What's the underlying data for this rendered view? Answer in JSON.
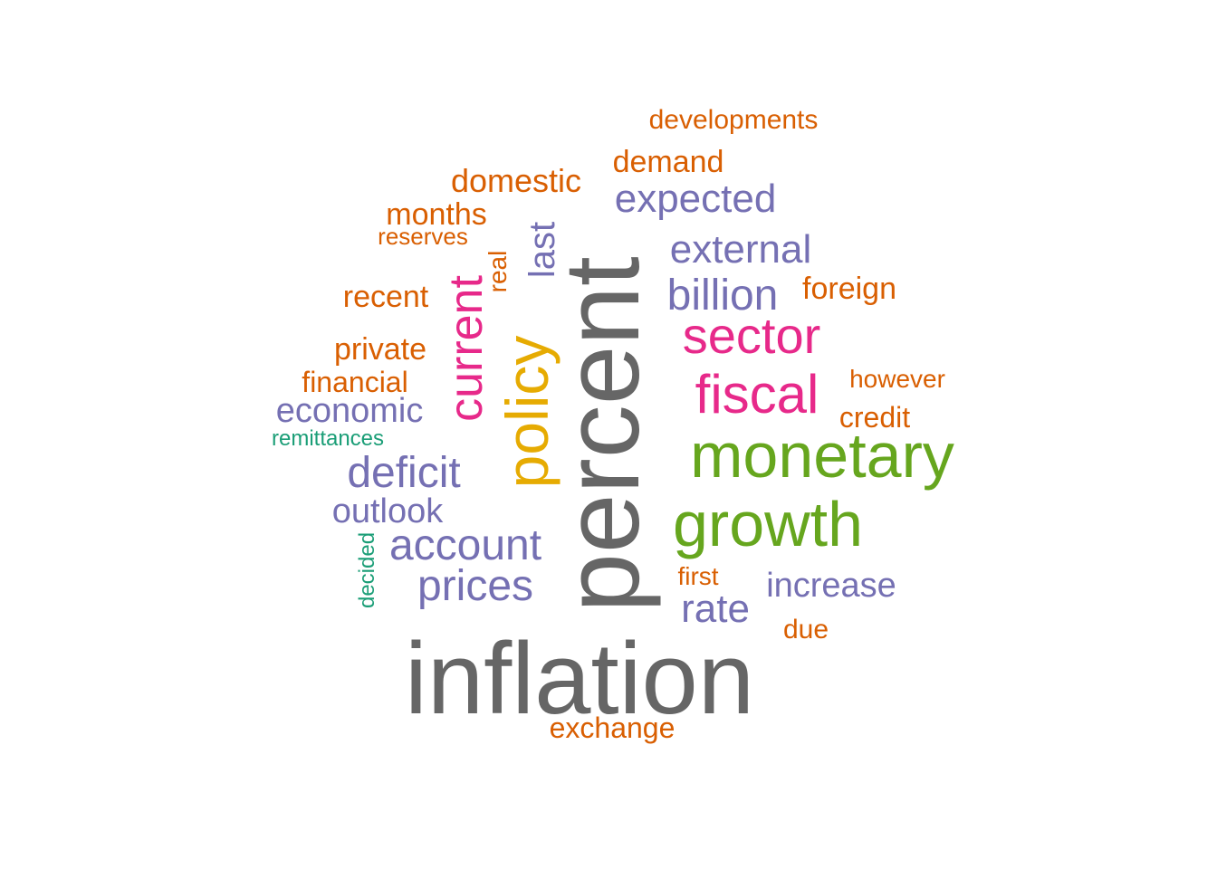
{
  "colors": {
    "gray": "#666666",
    "green": "#66A61E",
    "pink": "#E7298A",
    "purple": "#7570B3",
    "gold": "#E6AB02",
    "orange": "#D95F02",
    "teal": "#1B9E77"
  },
  "words": [
    {
      "id": "inflation",
      "text": "inflation",
      "color": "gray"
    },
    {
      "id": "percent",
      "text": "percent",
      "color": "gray"
    },
    {
      "id": "monetary",
      "text": "monetary",
      "color": "green"
    },
    {
      "id": "growth",
      "text": "growth",
      "color": "green"
    },
    {
      "id": "policy",
      "text": "policy",
      "color": "gold"
    },
    {
      "id": "fiscal",
      "text": "fiscal",
      "color": "pink"
    },
    {
      "id": "sector",
      "text": "sector",
      "color": "pink"
    },
    {
      "id": "current",
      "text": "current",
      "color": "pink"
    },
    {
      "id": "account",
      "text": "account",
      "color": "purple"
    },
    {
      "id": "deficit",
      "text": "deficit",
      "color": "purple"
    },
    {
      "id": "prices",
      "text": "prices",
      "color": "purple"
    },
    {
      "id": "billion",
      "text": "billion",
      "color": "purple"
    },
    {
      "id": "expected",
      "text": "expected",
      "color": "purple"
    },
    {
      "id": "external",
      "text": "external",
      "color": "purple"
    },
    {
      "id": "rate",
      "text": "rate",
      "color": "purple"
    },
    {
      "id": "increase",
      "text": "increase",
      "color": "purple"
    },
    {
      "id": "economic",
      "text": "economic",
      "color": "purple"
    },
    {
      "id": "outlook",
      "text": "outlook",
      "color": "purple"
    },
    {
      "id": "last",
      "text": "last",
      "color": "purple"
    },
    {
      "id": "domestic",
      "text": "domestic",
      "color": "orange"
    },
    {
      "id": "demand",
      "text": "demand",
      "color": "orange"
    },
    {
      "id": "developments",
      "text": "developments",
      "color": "orange"
    },
    {
      "id": "months",
      "text": "months",
      "color": "orange"
    },
    {
      "id": "reserves",
      "text": "reserves",
      "color": "orange"
    },
    {
      "id": "recent",
      "text": "recent",
      "color": "orange"
    },
    {
      "id": "private",
      "text": "private",
      "color": "orange"
    },
    {
      "id": "financial",
      "text": "financial",
      "color": "orange"
    },
    {
      "id": "foreign",
      "text": "foreign",
      "color": "orange"
    },
    {
      "id": "however",
      "text": "however",
      "color": "orange"
    },
    {
      "id": "credit",
      "text": "credit",
      "color": "orange"
    },
    {
      "id": "first",
      "text": "first",
      "color": "orange"
    },
    {
      "id": "due",
      "text": "due",
      "color": "orange"
    },
    {
      "id": "exchange",
      "text": "exchange",
      "color": "orange"
    },
    {
      "id": "real",
      "text": "real",
      "color": "orange"
    },
    {
      "id": "remittances",
      "text": "remittances",
      "color": "teal"
    },
    {
      "id": "decided",
      "text": "decided",
      "color": "teal"
    }
  ]
}
